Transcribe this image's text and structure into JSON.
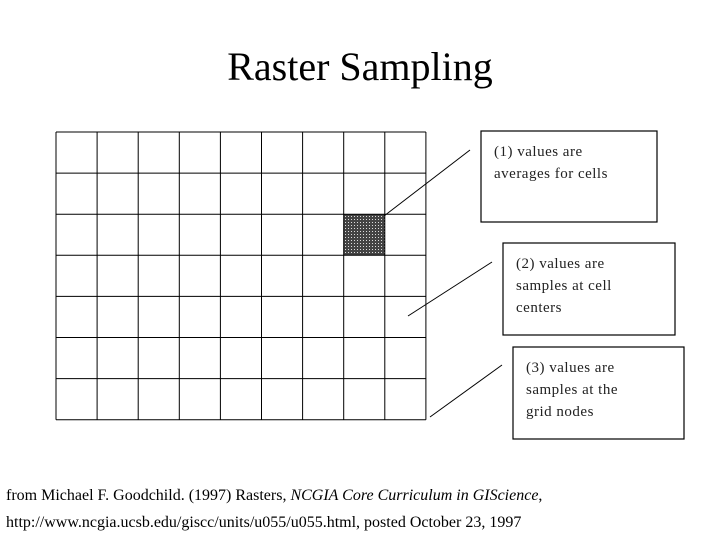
{
  "title": "Raster Sampling",
  "callouts": [
    {
      "lines": [
        "(1) values are",
        "averages for cells"
      ]
    },
    {
      "lines": [
        "(2) values are",
        "samples at cell",
        "centers"
      ]
    },
    {
      "lines": [
        "(3) values are",
        "samples at the",
        "grid nodes"
      ]
    }
  ],
  "citation": {
    "line1_start": "from Michael F. Goodchild. (1997) Rasters, ",
    "line1_italic": "NCGIA Core Curriculum in GIScience",
    "line1_end": ",",
    "line2": "http://www.ncgia.ucsb.edu/giscc/units/u055/u055.html, posted October 23, 1997"
  }
}
